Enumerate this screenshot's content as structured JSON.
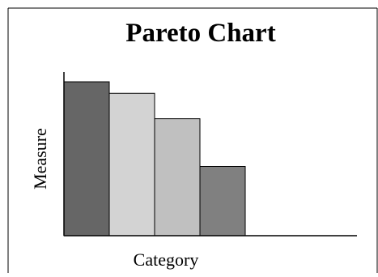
{
  "chart_data": {
    "type": "bar",
    "title": "Pareto Chart",
    "xlabel": "Category",
    "ylabel": "Measure",
    "categories": [
      "",
      "",
      "",
      ""
    ],
    "values": [
      100,
      92.5,
      76,
      45
    ],
    "colors": [
      "#666666",
      "#d3d3d3",
      "#c0c0c0",
      "#808080"
    ],
    "ylim": [
      0,
      100
    ],
    "grid": false,
    "legend": "none"
  }
}
